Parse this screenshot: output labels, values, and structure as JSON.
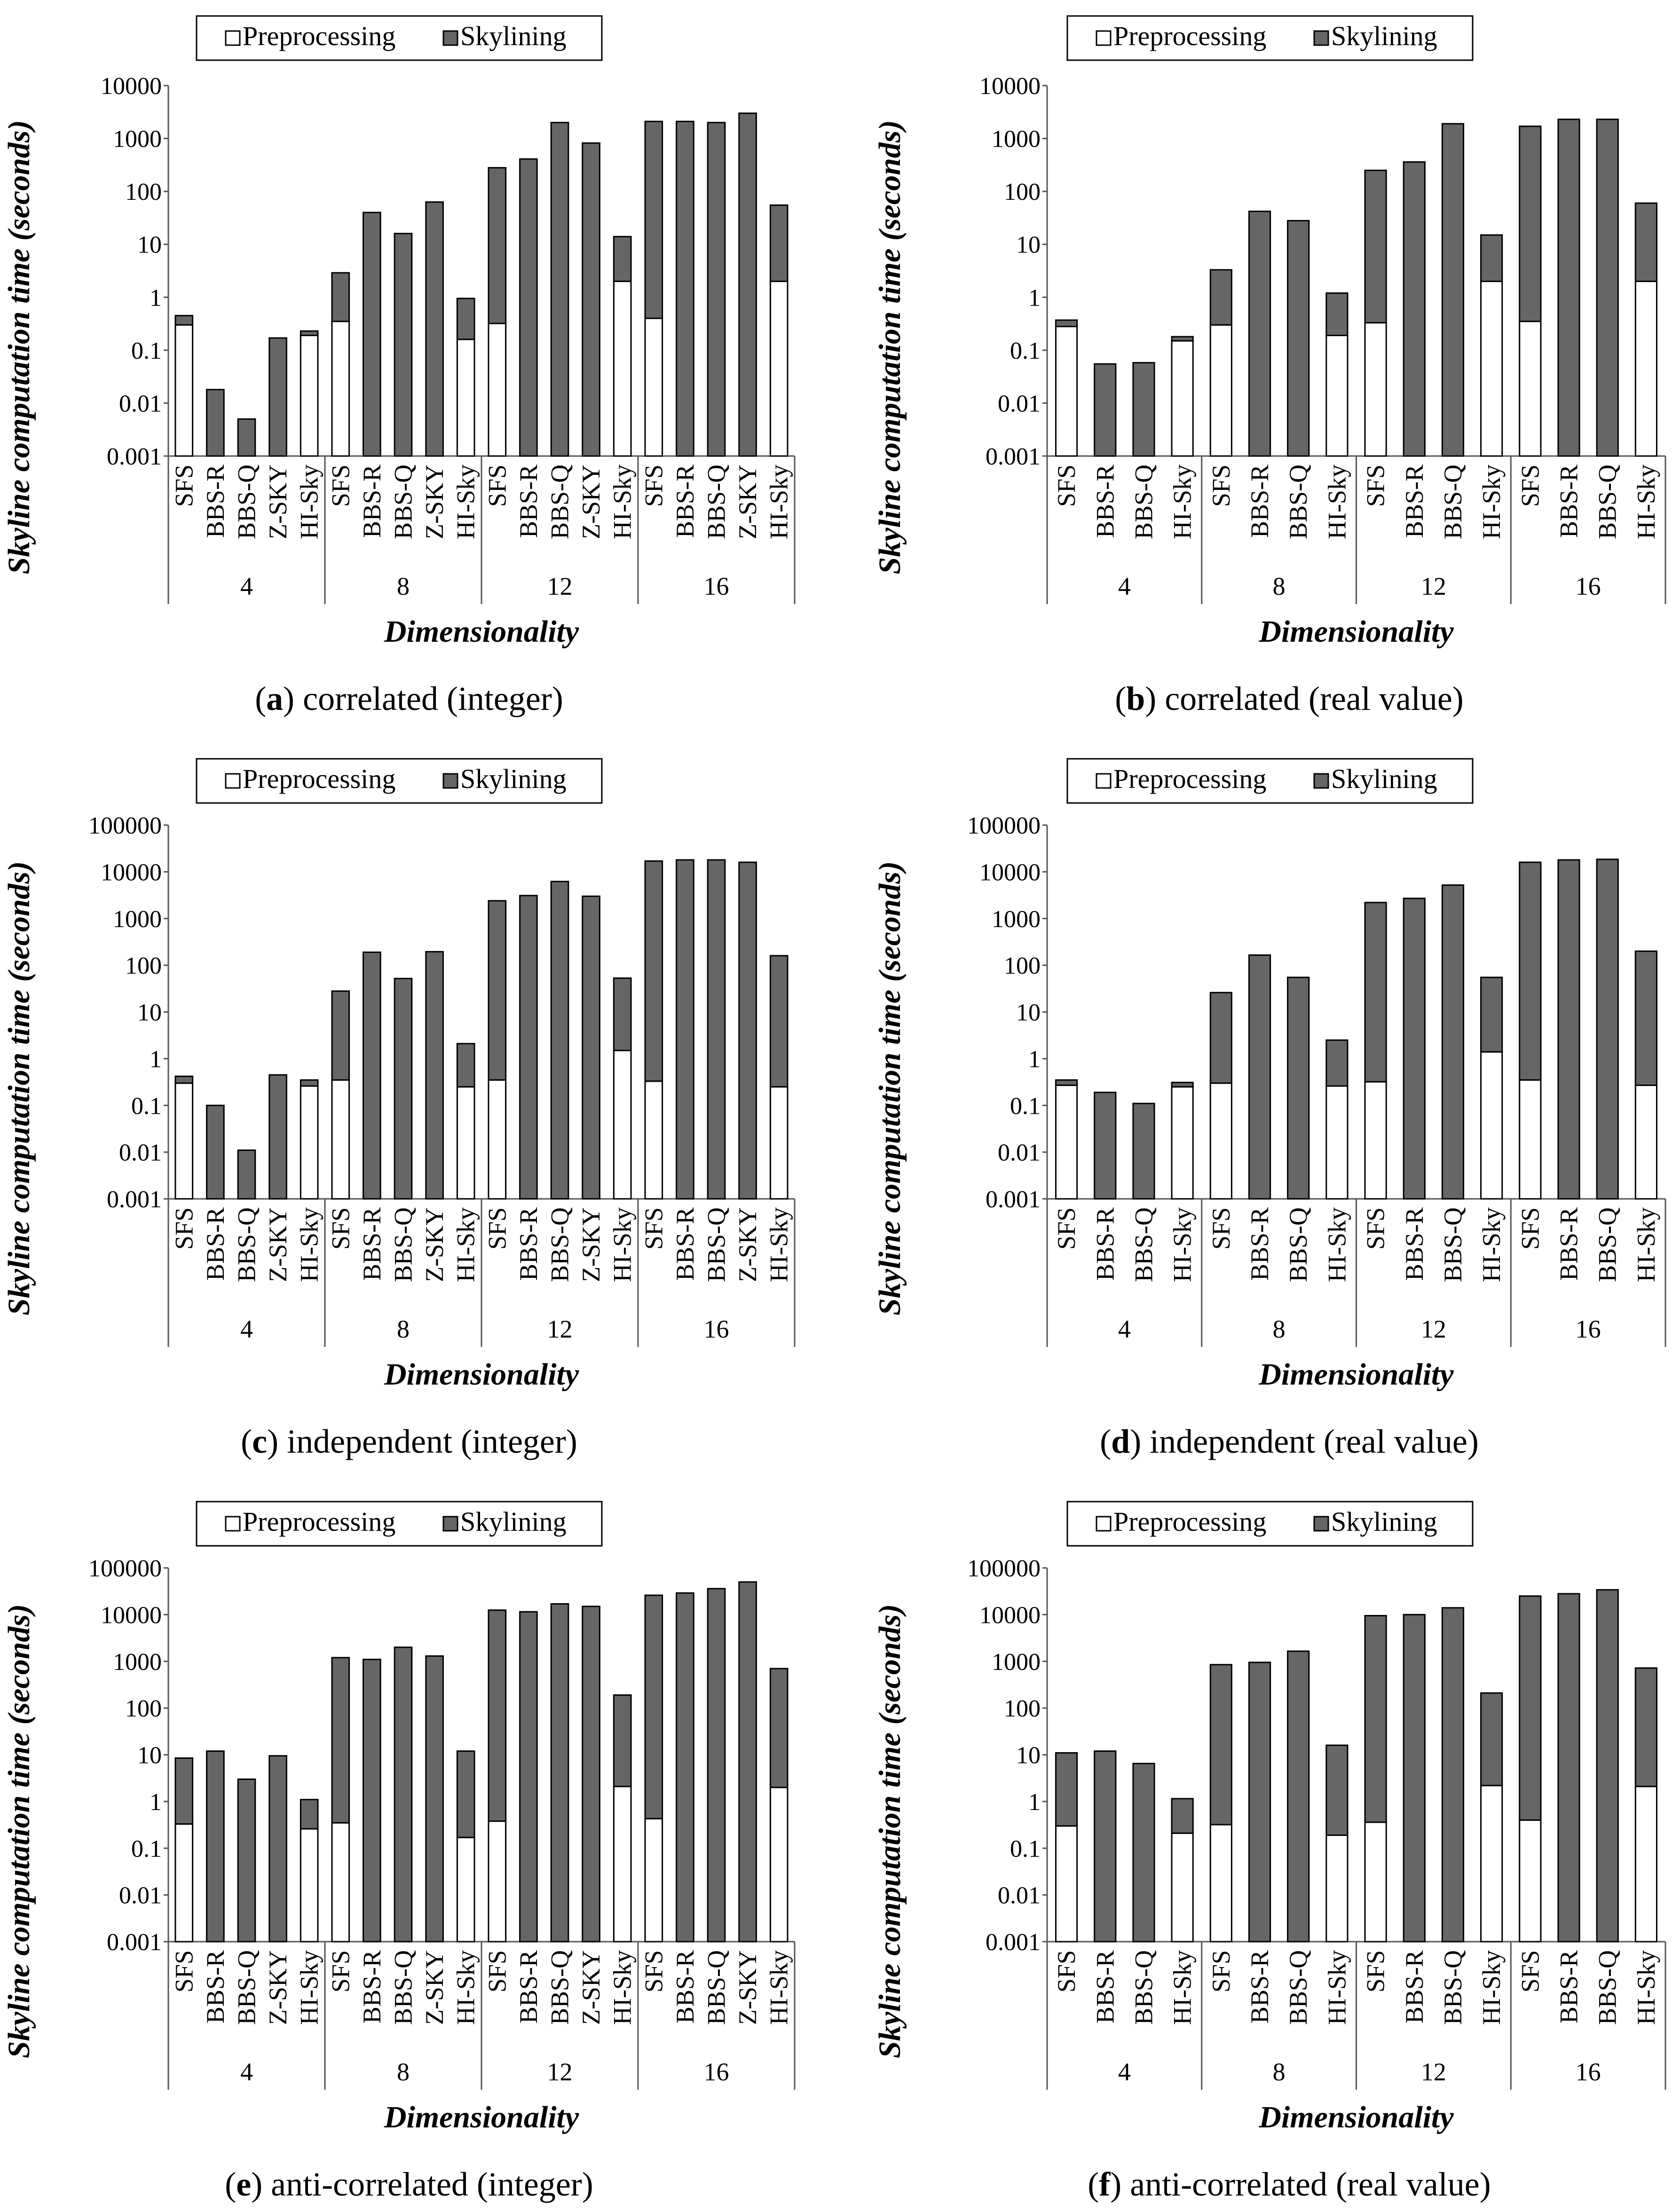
{
  "figure": {
    "legend_labels": [
      "Preprocessing",
      "Skylining"
    ],
    "colors": {
      "preprocessing": "#ffffff",
      "skylining": "#666666",
      "edge": "#000000"
    },
    "ylabel": "Skyline computation time (seconds)",
    "xlabel": "Dimensionality"
  },
  "chart_data": [
    {
      "type": "bar",
      "stacked": true,
      "yscale": "log",
      "ylim": [
        0.001,
        10000
      ],
      "yticks": [
        "0.001",
        "0.01",
        "0.1",
        "1",
        "10",
        "100",
        "1000",
        "10000"
      ],
      "caption_letter": "a",
      "caption_rest": ") correlated (integer)",
      "groups": [
        {
          "label": "4",
          "bars": [
            {
              "name": "SFS",
              "pre": 0.3,
              "total": 0.45
            },
            {
              "name": "BBS-R",
              "pre": 0,
              "total": 0.018
            },
            {
              "name": "BBS-Q",
              "pre": 0,
              "total": 0.005
            },
            {
              "name": "Z-SKY",
              "pre": 0,
              "total": 0.17
            },
            {
              "name": "HI-Sky",
              "pre": 0.19,
              "total": 0.23
            }
          ]
        },
        {
          "label": "8",
          "bars": [
            {
              "name": "SFS",
              "pre": 0.35,
              "total": 2.9
            },
            {
              "name": "BBS-R",
              "pre": 0,
              "total": 40
            },
            {
              "name": "BBS-Q",
              "pre": 0,
              "total": 16
            },
            {
              "name": "Z-SKY",
              "pre": 0,
              "total": 63
            },
            {
              "name": "HI-Sky",
              "pre": 0.16,
              "total": 0.95
            }
          ]
        },
        {
          "label": "12",
          "bars": [
            {
              "name": "SFS",
              "pre": 0.32,
              "total": 280
            },
            {
              "name": "BBS-R",
              "pre": 0,
              "total": 410
            },
            {
              "name": "BBS-Q",
              "pre": 0,
              "total": 2000
            },
            {
              "name": "Z-SKY",
              "pre": 0,
              "total": 820
            },
            {
              "name": "HI-Sky",
              "pre": 2.0,
              "total": 14
            }
          ]
        },
        {
          "label": "16",
          "bars": [
            {
              "name": "SFS",
              "pre": 0.4,
              "total": 2100
            },
            {
              "name": "BBS-R",
              "pre": 0,
              "total": 2100
            },
            {
              "name": "BBS-Q",
              "pre": 0,
              "total": 2000
            },
            {
              "name": "Z-SKY",
              "pre": 0,
              "total": 3000
            },
            {
              "name": "HI-Sky",
              "pre": 2.0,
              "total": 55
            }
          ]
        }
      ]
    },
    {
      "type": "bar",
      "stacked": true,
      "yscale": "log",
      "ylim": [
        0.001,
        10000
      ],
      "yticks": [
        "0.001",
        "0.01",
        "0.1",
        "1",
        "10",
        "100",
        "1000",
        "10000"
      ],
      "caption_letter": "b",
      "caption_rest": ") correlated (real value)",
      "groups": [
        {
          "label": "4",
          "bars": [
            {
              "name": "SFS",
              "pre": 0.28,
              "total": 0.37
            },
            {
              "name": "BBS-R",
              "pre": 0,
              "total": 0.055
            },
            {
              "name": "BBS-Q",
              "pre": 0,
              "total": 0.058
            },
            {
              "name": "HI-Sky",
              "pre": 0.15,
              "total": 0.18
            }
          ]
        },
        {
          "label": "8",
          "bars": [
            {
              "name": "SFS",
              "pre": 0.3,
              "total": 3.3
            },
            {
              "name": "BBS-R",
              "pre": 0,
              "total": 42
            },
            {
              "name": "BBS-Q",
              "pre": 0,
              "total": 28
            },
            {
              "name": "HI-Sky",
              "pre": 0.19,
              "total": 1.2
            }
          ]
        },
        {
          "label": "12",
          "bars": [
            {
              "name": "SFS",
              "pre": 0.33,
              "total": 250
            },
            {
              "name": "BBS-R",
              "pre": 0,
              "total": 360
            },
            {
              "name": "BBS-Q",
              "pre": 0,
              "total": 1900
            },
            {
              "name": "HI-Sky",
              "pre": 2.0,
              "total": 15
            }
          ]
        },
        {
          "label": "16",
          "bars": [
            {
              "name": "SFS",
              "pre": 0.35,
              "total": 1700
            },
            {
              "name": "BBS-R",
              "pre": 0,
              "total": 2300
            },
            {
              "name": "BBS-Q",
              "pre": 0,
              "total": 2300
            },
            {
              "name": "HI-Sky",
              "pre": 2.0,
              "total": 60
            }
          ]
        }
      ]
    },
    {
      "type": "bar",
      "stacked": true,
      "yscale": "log",
      "ylim": [
        0.001,
        100000
      ],
      "yticks": [
        "0.001",
        "0.01",
        "0.1",
        "1",
        "10",
        "100",
        "1000",
        "10000",
        "100000"
      ],
      "caption_letter": "c",
      "caption_rest": ") independent (integer)",
      "groups": [
        {
          "label": "4",
          "bars": [
            {
              "name": "SFS",
              "pre": 0.3,
              "total": 0.42
            },
            {
              "name": "BBS-R",
              "pre": 0,
              "total": 0.1
            },
            {
              "name": "BBS-Q",
              "pre": 0,
              "total": 0.011
            },
            {
              "name": "Z-SKY",
              "pre": 0,
              "total": 0.45
            },
            {
              "name": "HI-Sky",
              "pre": 0.26,
              "total": 0.35
            }
          ]
        },
        {
          "label": "8",
          "bars": [
            {
              "name": "SFS",
              "pre": 0.35,
              "total": 28
            },
            {
              "name": "BBS-R",
              "pre": 0,
              "total": 190
            },
            {
              "name": "BBS-Q",
              "pre": 0,
              "total": 52
            },
            {
              "name": "Z-SKY",
              "pre": 0,
              "total": 195
            },
            {
              "name": "HI-Sky",
              "pre": 0.25,
              "total": 2.1
            }
          ]
        },
        {
          "label": "12",
          "bars": [
            {
              "name": "SFS",
              "pre": 0.35,
              "total": 2400
            },
            {
              "name": "BBS-R",
              "pre": 0,
              "total": 3100
            },
            {
              "name": "BBS-Q",
              "pre": 0,
              "total": 6200
            },
            {
              "name": "Z-SKY",
              "pre": 0,
              "total": 3000
            },
            {
              "name": "HI-Sky",
              "pre": 1.5,
              "total": 53
            }
          ]
        },
        {
          "label": "16",
          "bars": [
            {
              "name": "SFS",
              "pre": 0.33,
              "total": 17000
            },
            {
              "name": "BBS-R",
              "pre": 0,
              "total": 18000
            },
            {
              "name": "BBS-Q",
              "pre": 0,
              "total": 18000
            },
            {
              "name": "Z-SKY",
              "pre": 0,
              "total": 16000
            },
            {
              "name": "HI-Sky",
              "pre": 0.25,
              "total": 160
            }
          ]
        }
      ]
    },
    {
      "type": "bar",
      "stacked": true,
      "yscale": "log",
      "ylim": [
        0.001,
        100000
      ],
      "yticks": [
        "0.001",
        "0.01",
        "0.1",
        "1",
        "10",
        "100",
        "1000",
        "10000",
        "100000"
      ],
      "caption_letter": "d",
      "caption_rest": ") independent (real value)",
      "groups": [
        {
          "label": "4",
          "bars": [
            {
              "name": "SFS",
              "pre": 0.27,
              "total": 0.35
            },
            {
              "name": "BBS-R",
              "pre": 0,
              "total": 0.19
            },
            {
              "name": "BBS-Q",
              "pre": 0,
              "total": 0.11
            },
            {
              "name": "HI-Sky",
              "pre": 0.25,
              "total": 0.31
            }
          ]
        },
        {
          "label": "8",
          "bars": [
            {
              "name": "SFS",
              "pre": 0.3,
              "total": 26
            },
            {
              "name": "BBS-R",
              "pre": 0,
              "total": 165
            },
            {
              "name": "BBS-Q",
              "pre": 0,
              "total": 55
            },
            {
              "name": "HI-Sky",
              "pre": 0.26,
              "total": 2.5
            }
          ]
        },
        {
          "label": "12",
          "bars": [
            {
              "name": "SFS",
              "pre": 0.32,
              "total": 2200
            },
            {
              "name": "BBS-R",
              "pre": 0,
              "total": 2700
            },
            {
              "name": "BBS-Q",
              "pre": 0,
              "total": 5200
            },
            {
              "name": "HI-Sky",
              "pre": 1.4,
              "total": 55
            }
          ]
        },
        {
          "label": "16",
          "bars": [
            {
              "name": "SFS",
              "pre": 0.35,
              "total": 16000
            },
            {
              "name": "BBS-R",
              "pre": 0,
              "total": 18000
            },
            {
              "name": "BBS-Q",
              "pre": 0,
              "total": 18500
            },
            {
              "name": "HI-Sky",
              "pre": 0.27,
              "total": 200
            }
          ]
        }
      ]
    },
    {
      "type": "bar",
      "stacked": true,
      "yscale": "log",
      "ylim": [
        0.001,
        100000
      ],
      "yticks": [
        "0.001",
        "0.01",
        "0.1",
        "1",
        "10",
        "100",
        "1000",
        "10000",
        "100000"
      ],
      "caption_letter": "e",
      "caption_rest": ") anti-correlated (integer)",
      "groups": [
        {
          "label": "4",
          "bars": [
            {
              "name": "SFS",
              "pre": 0.33,
              "total": 8.5
            },
            {
              "name": "BBS-R",
              "pre": 0,
              "total": 12
            },
            {
              "name": "BBS-Q",
              "pre": 0,
              "total": 3.0
            },
            {
              "name": "Z-SKY",
              "pre": 0,
              "total": 9.5
            },
            {
              "name": "HI-Sky",
              "pre": 0.26,
              "total": 1.1
            }
          ]
        },
        {
          "label": "8",
          "bars": [
            {
              "name": "SFS",
              "pre": 0.35,
              "total": 1200
            },
            {
              "name": "BBS-R",
              "pre": 0,
              "total": 1100
            },
            {
              "name": "BBS-Q",
              "pre": 0,
              "total": 2000
            },
            {
              "name": "Z-SKY",
              "pre": 0,
              "total": 1300
            },
            {
              "name": "HI-Sky",
              "pre": 0.17,
              "total": 12
            }
          ]
        },
        {
          "label": "12",
          "bars": [
            {
              "name": "SFS",
              "pre": 0.38,
              "total": 12500
            },
            {
              "name": "BBS-R",
              "pre": 0,
              "total": 11500
            },
            {
              "name": "BBS-Q",
              "pre": 0,
              "total": 17000
            },
            {
              "name": "Z-SKY",
              "pre": 0,
              "total": 15000
            },
            {
              "name": "HI-Sky",
              "pre": 2.1,
              "total": 190
            }
          ]
        },
        {
          "label": "16",
          "bars": [
            {
              "name": "SFS",
              "pre": 0.43,
              "total": 26000
            },
            {
              "name": "BBS-R",
              "pre": 0,
              "total": 29000
            },
            {
              "name": "BBS-Q",
              "pre": 0,
              "total": 36000
            },
            {
              "name": "Z-SKY",
              "pre": 0,
              "total": 50000
            },
            {
              "name": "HI-Sky",
              "pre": 2.0,
              "total": 700
            }
          ]
        }
      ]
    },
    {
      "type": "bar",
      "stacked": true,
      "yscale": "log",
      "ylim": [
        0.001,
        100000
      ],
      "yticks": [
        "0.001",
        "0.01",
        "0.1",
        "1",
        "10",
        "100",
        "1000",
        "10000",
        "100000"
      ],
      "caption_letter": "f",
      "caption_rest": ") anti-correlated (real value)",
      "groups": [
        {
          "label": "4",
          "bars": [
            {
              "name": "SFS",
              "pre": 0.3,
              "total": 11
            },
            {
              "name": "BBS-R",
              "pre": 0,
              "total": 12
            },
            {
              "name": "BBS-Q",
              "pre": 0,
              "total": 6.5
            },
            {
              "name": "HI-Sky",
              "pre": 0.21,
              "total": 1.15
            }
          ]
        },
        {
          "label": "8",
          "bars": [
            {
              "name": "SFS",
              "pre": 0.32,
              "total": 850
            },
            {
              "name": "BBS-R",
              "pre": 0,
              "total": 950
            },
            {
              "name": "BBS-Q",
              "pre": 0,
              "total": 1650
            },
            {
              "name": "HI-Sky",
              "pre": 0.19,
              "total": 16
            }
          ]
        },
        {
          "label": "12",
          "bars": [
            {
              "name": "SFS",
              "pre": 0.36,
              "total": 9500
            },
            {
              "name": "BBS-R",
              "pre": 0,
              "total": 10000
            },
            {
              "name": "BBS-Q",
              "pre": 0,
              "total": 14000
            },
            {
              "name": "HI-Sky",
              "pre": 2.2,
              "total": 210
            }
          ]
        },
        {
          "label": "16",
          "bars": [
            {
              "name": "SFS",
              "pre": 0.4,
              "total": 25000
            },
            {
              "name": "BBS-R",
              "pre": 0,
              "total": 28000
            },
            {
              "name": "BBS-Q",
              "pre": 0,
              "total": 34000
            },
            {
              "name": "HI-Sky",
              "pre": 2.1,
              "total": 720
            }
          ]
        }
      ]
    }
  ]
}
